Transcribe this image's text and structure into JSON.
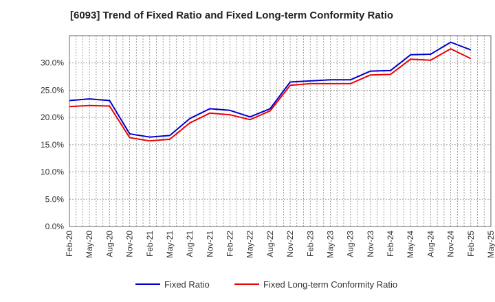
{
  "chart_data": {
    "type": "line",
    "title": "[6093]  Trend of Fixed Ratio and Fixed Long-term Conformity Ratio",
    "xlabel": "",
    "ylabel": "",
    "x": [
      "Feb-20",
      "May-20",
      "Aug-20",
      "Nov-20",
      "Feb-21",
      "May-21",
      "Aug-21",
      "Nov-21",
      "Feb-22",
      "May-22",
      "Aug-22",
      "Nov-22",
      "Feb-23",
      "May-23",
      "Aug-23",
      "Nov-23",
      "Feb-24",
      "May-24",
      "Aug-24",
      "Nov-24",
      "Feb-25"
    ],
    "x_ticks": [
      "Feb-20",
      "May-20",
      "Aug-20",
      "Nov-20",
      "Feb-21",
      "May-21",
      "Aug-21",
      "Nov-21",
      "Feb-22",
      "May-22",
      "Aug-22",
      "Nov-22",
      "Feb-23",
      "May-23",
      "Aug-23",
      "Nov-23",
      "Feb-24",
      "May-24",
      "Aug-24",
      "Nov-24",
      "Feb-25",
      "May-25"
    ],
    "y_ticks": [
      "0.0%",
      "5.0%",
      "10.0%",
      "15.0%",
      "20.0%",
      "25.0%",
      "30.0%"
    ],
    "ylim": [
      0,
      35
    ],
    "grid": true,
    "legend_position": "bottom",
    "series": [
      {
        "name": "Fixed Ratio",
        "color": "#0000cc",
        "values": [
          23.1,
          23.4,
          23.1,
          17.0,
          16.4,
          16.7,
          19.8,
          21.6,
          21.3,
          20.1,
          21.6,
          26.5,
          26.7,
          26.9,
          26.9,
          28.5,
          28.6,
          31.5,
          31.6,
          33.8,
          32.4
        ]
      },
      {
        "name": "Fixed Long-term Conformity Ratio",
        "color": "#ee0000",
        "values": [
          22.0,
          22.2,
          22.1,
          16.3,
          15.7,
          16.0,
          19.0,
          20.8,
          20.5,
          19.6,
          21.2,
          25.9,
          26.2,
          26.2,
          26.2,
          27.8,
          27.9,
          30.7,
          30.5,
          32.6,
          30.8
        ]
      }
    ]
  }
}
